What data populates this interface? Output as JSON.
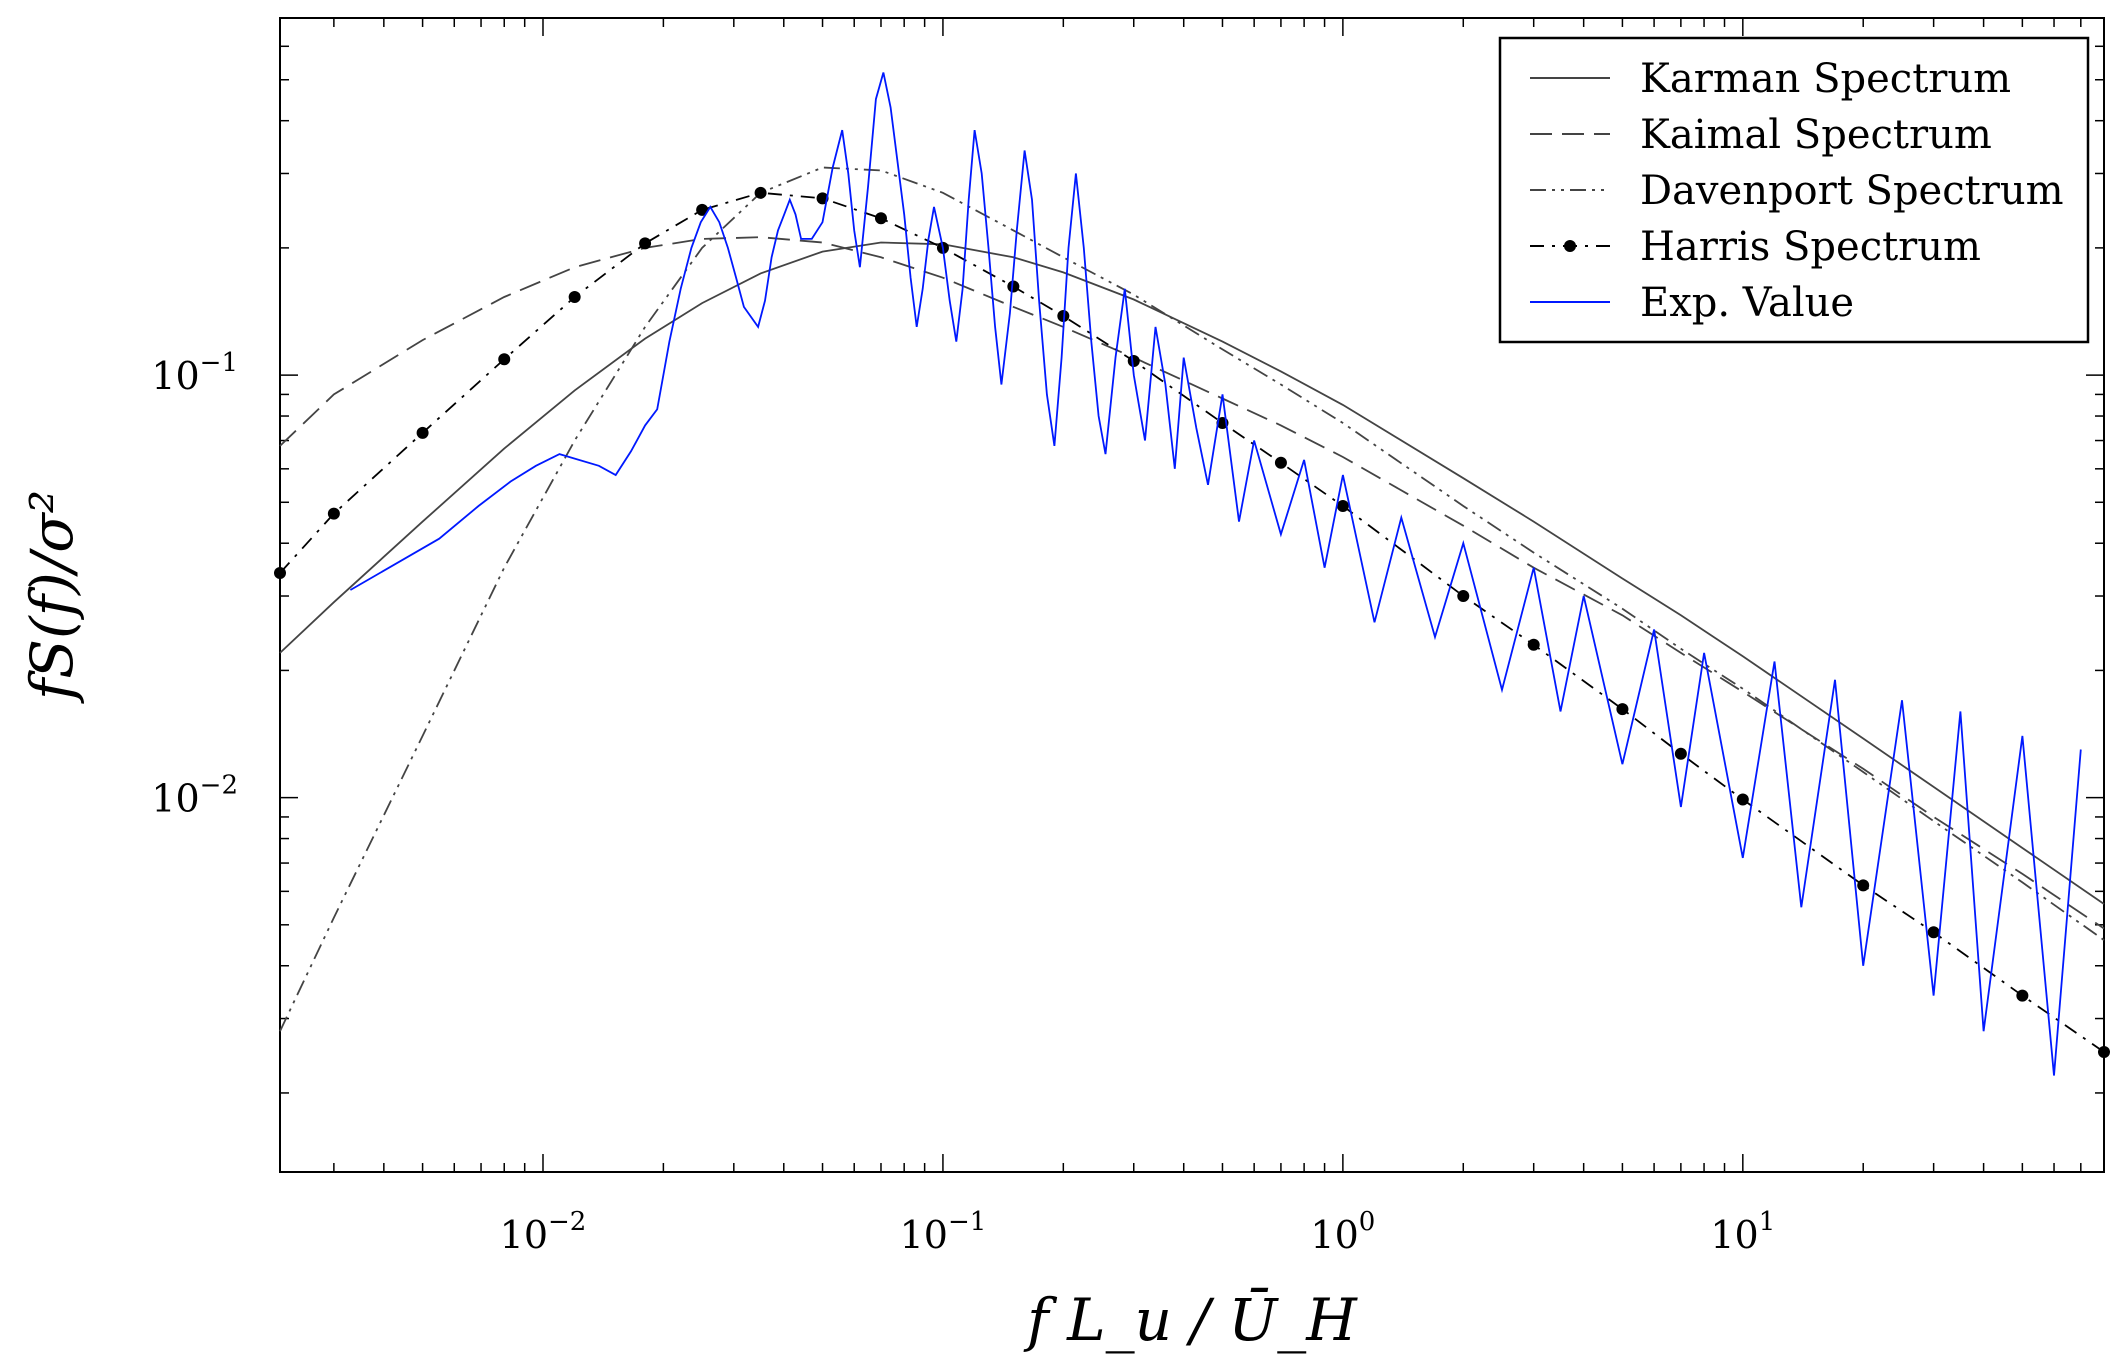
{
  "chart_data": {
    "type": "line",
    "xscale": "log",
    "yscale": "log",
    "xlim": [
      0.0022,
      80
    ],
    "ylim": [
      0.0013,
      0.7
    ],
    "xticks": [
      {
        "value": 0.01,
        "base": "10",
        "exp": "−2"
      },
      {
        "value": 0.1,
        "base": "10",
        "exp": "−1"
      },
      {
        "value": 1,
        "base": "10",
        "exp": "0"
      },
      {
        "value": 10,
        "base": "10",
        "exp": "1"
      }
    ],
    "yticks": [
      {
        "value": 0.01,
        "base": "10",
        "exp": "−2"
      },
      {
        "value": 0.1,
        "base": "10",
        "exp": "−1"
      }
    ],
    "xlabel": "f L_u / Ū_H",
    "ylabel": "fS(f)/σ²",
    "grid": false,
    "legend_position": "top-right",
    "series": [
      {
        "name": "Karman Spectrum",
        "style": "solid",
        "color": "#444444",
        "x": [
          0.0022,
          0.003,
          0.005,
          0.008,
          0.012,
          0.018,
          0.025,
          0.035,
          0.05,
          0.07,
          0.1,
          0.15,
          0.2,
          0.3,
          0.5,
          0.7,
          1,
          2,
          3,
          5,
          7,
          10,
          20,
          30,
          50,
          80
        ],
        "y": [
          0.022,
          0.029,
          0.045,
          0.067,
          0.092,
          0.122,
          0.148,
          0.174,
          0.196,
          0.206,
          0.204,
          0.19,
          0.175,
          0.151,
          0.12,
          0.102,
          0.085,
          0.057,
          0.045,
          0.033,
          0.027,
          0.0216,
          0.0138,
          0.0106,
          0.0076,
          0.0056
        ]
      },
      {
        "name": "Kaimal Spectrum",
        "style": "dashed",
        "color": "#444444",
        "x": [
          0.0022,
          0.003,
          0.005,
          0.008,
          0.012,
          0.018,
          0.025,
          0.035,
          0.05,
          0.07,
          0.1,
          0.15,
          0.2,
          0.3,
          0.5,
          0.7,
          1,
          2,
          3,
          5,
          7,
          10,
          20,
          30,
          50,
          80
        ],
        "y": [
          0.068,
          0.09,
          0.121,
          0.153,
          0.18,
          0.2,
          0.21,
          0.212,
          0.206,
          0.19,
          0.17,
          0.145,
          0.13,
          0.11,
          0.088,
          0.076,
          0.064,
          0.044,
          0.035,
          0.027,
          0.022,
          0.0178,
          0.0117,
          0.009,
          0.0066,
          0.0049
        ]
      },
      {
        "name": "Davenport Spectrum",
        "style": "dashdotdot",
        "color": "#444444",
        "x": [
          0.0022,
          0.003,
          0.005,
          0.008,
          0.012,
          0.018,
          0.025,
          0.035,
          0.05,
          0.07,
          0.1,
          0.15,
          0.2,
          0.3,
          0.5,
          0.7,
          1,
          2,
          3,
          5,
          7,
          10,
          20,
          30,
          50,
          80
        ],
        "y": [
          0.0028,
          0.0052,
          0.014,
          0.035,
          0.07,
          0.13,
          0.2,
          0.27,
          0.31,
          0.305,
          0.27,
          0.22,
          0.19,
          0.155,
          0.115,
          0.095,
          0.077,
          0.049,
          0.038,
          0.028,
          0.0225,
          0.0181,
          0.0115,
          0.0088,
          0.0063,
          0.0046
        ]
      },
      {
        "name": "Harris Spectrum",
        "style": "dashdot-dots",
        "color": "#000000",
        "x": [
          0.0022,
          0.003,
          0.005,
          0.008,
          0.012,
          0.018,
          0.025,
          0.035,
          0.05,
          0.07,
          0.1,
          0.15,
          0.2,
          0.3,
          0.5,
          0.7,
          1,
          2,
          3,
          5,
          7,
          10,
          20,
          30,
          50,
          80
        ],
        "y": [
          0.034,
          0.047,
          0.073,
          0.109,
          0.153,
          0.205,
          0.246,
          0.27,
          0.262,
          0.235,
          0.2,
          0.162,
          0.138,
          0.108,
          0.077,
          0.062,
          0.049,
          0.03,
          0.023,
          0.0162,
          0.0127,
          0.0099,
          0.0062,
          0.0048,
          0.0034,
          0.0025
        ]
      },
      {
        "name": "Exp. Value",
        "style": "solid",
        "color": "#0019ff",
        "x": [
          0.0033,
          0.0055,
          0.0069,
          0.0083,
          0.0096,
          0.011,
          0.0138,
          0.0152,
          0.0166,
          0.018,
          0.0193,
          0.0207,
          0.0221,
          0.0235,
          0.0248,
          0.0262,
          0.0276,
          0.029,
          0.0304,
          0.0318,
          0.0345,
          0.0359,
          0.0373,
          0.0387,
          0.0401,
          0.0414,
          0.0428,
          0.0442,
          0.047,
          0.05,
          0.053,
          0.056,
          0.058,
          0.06,
          0.062,
          0.065,
          0.068,
          0.071,
          0.074,
          0.077,
          0.08,
          0.083,
          0.086,
          0.089,
          0.092,
          0.095,
          0.1,
          0.104,
          0.108,
          0.112,
          0.116,
          0.12,
          0.125,
          0.13,
          0.135,
          0.14,
          0.147,
          0.153,
          0.16,
          0.167,
          0.174,
          0.182,
          0.19,
          0.198,
          0.206,
          0.215,
          0.225,
          0.235,
          0.245,
          0.255,
          0.27,
          0.285,
          0.3,
          0.32,
          0.34,
          0.36,
          0.38,
          0.4,
          0.43,
          0.46,
          0.5,
          0.55,
          0.6,
          0.7,
          0.8,
          0.9,
          1,
          1.2,
          1.4,
          1.7,
          2,
          2.5,
          3,
          3.5,
          4,
          5,
          6,
          7,
          8,
          10,
          12,
          14,
          17,
          20,
          25,
          30,
          35,
          40,
          50,
          60,
          70
        ],
        "y": [
          0.031,
          0.041,
          0.049,
          0.056,
          0.061,
          0.065,
          0.061,
          0.058,
          0.066,
          0.076,
          0.083,
          0.12,
          0.16,
          0.2,
          0.23,
          0.25,
          0.23,
          0.2,
          0.17,
          0.145,
          0.13,
          0.15,
          0.19,
          0.22,
          0.24,
          0.26,
          0.24,
          0.21,
          0.21,
          0.23,
          0.31,
          0.38,
          0.3,
          0.22,
          0.18,
          0.28,
          0.45,
          0.52,
          0.43,
          0.32,
          0.24,
          0.17,
          0.13,
          0.16,
          0.21,
          0.25,
          0.2,
          0.15,
          0.12,
          0.16,
          0.26,
          0.38,
          0.3,
          0.2,
          0.13,
          0.095,
          0.14,
          0.22,
          0.34,
          0.26,
          0.15,
          0.09,
          0.068,
          0.11,
          0.2,
          0.3,
          0.2,
          0.12,
          0.08,
          0.065,
          0.11,
          0.16,
          0.1,
          0.07,
          0.13,
          0.095,
          0.06,
          0.11,
          0.075,
          0.055,
          0.09,
          0.045,
          0.07,
          0.042,
          0.063,
          0.035,
          0.058,
          0.026,
          0.046,
          0.024,
          0.04,
          0.018,
          0.035,
          0.016,
          0.03,
          0.012,
          0.025,
          0.0095,
          0.022,
          0.0072,
          0.021,
          0.0055,
          0.019,
          0.004,
          0.017,
          0.0034,
          0.016,
          0.0028,
          0.014,
          0.0022,
          0.013
        ]
      }
    ],
    "legend_entries": [
      "Karman Spectrum",
      "Kaimal Spectrum",
      "Davenport Spectrum",
      "Harris Spectrum",
      "Exp. Value"
    ]
  }
}
